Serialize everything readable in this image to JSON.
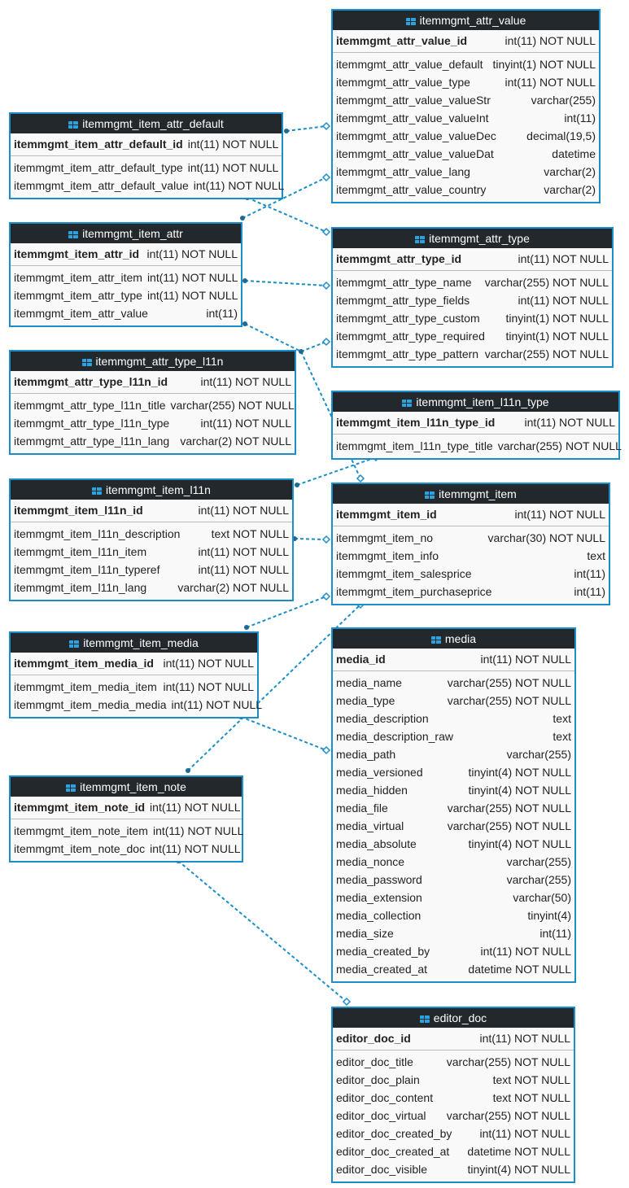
{
  "tables": [
    {
      "name": "itemmgmt_attr_value",
      "primary_key": {
        "name": "itemmgmt_attr_value_id",
        "type": "int(11) NOT NULL"
      },
      "columns": [
        {
          "name": "itemmgmt_attr_value_default",
          "type": "tinyint(1) NOT NULL"
        },
        {
          "name": "itemmgmt_attr_value_type",
          "type": "int(11) NOT NULL"
        },
        {
          "name": "itemmgmt_attr_value_valueStr",
          "type": "varchar(255)"
        },
        {
          "name": "itemmgmt_attr_value_valueInt",
          "type": "int(11)"
        },
        {
          "name": "itemmgmt_attr_value_valueDec",
          "type": "decimal(19,5)"
        },
        {
          "name": "itemmgmt_attr_value_valueDat",
          "type": "datetime"
        },
        {
          "name": "itemmgmt_attr_value_lang",
          "type": "varchar(2)"
        },
        {
          "name": "itemmgmt_attr_value_country",
          "type": "varchar(2)"
        }
      ]
    },
    {
      "name": "itemmgmt_item_attr_default",
      "primary_key": {
        "name": "itemmgmt_item_attr_default_id",
        "type": "int(11) NOT NULL"
      },
      "columns": [
        {
          "name": "itemmgmt_item_attr_default_type",
          "type": "int(11) NOT NULL"
        },
        {
          "name": "itemmgmt_item_attr_default_value",
          "type": "int(11) NOT NULL"
        }
      ]
    },
    {
      "name": "itemmgmt_item_attr",
      "primary_key": {
        "name": "itemmgmt_item_attr_id",
        "type": "int(11) NOT NULL"
      },
      "columns": [
        {
          "name": "itemmgmt_item_attr_item",
          "type": "int(11) NOT NULL"
        },
        {
          "name": "itemmgmt_item_attr_type",
          "type": "int(11) NOT NULL"
        },
        {
          "name": "itemmgmt_item_attr_value",
          "type": "int(11)"
        }
      ]
    },
    {
      "name": "itemmgmt_attr_type",
      "primary_key": {
        "name": "itemmgmt_attr_type_id",
        "type": "int(11) NOT NULL"
      },
      "columns": [
        {
          "name": "itemmgmt_attr_type_name",
          "type": "varchar(255) NOT NULL"
        },
        {
          "name": "itemmgmt_attr_type_fields",
          "type": "int(11) NOT NULL"
        },
        {
          "name": "itemmgmt_attr_type_custom",
          "type": "tinyint(1) NOT NULL"
        },
        {
          "name": "itemmgmt_attr_type_required",
          "type": "tinyint(1) NOT NULL"
        },
        {
          "name": "itemmgmt_attr_type_pattern",
          "type": "varchar(255) NOT NULL"
        }
      ]
    },
    {
      "name": "itemmgmt_attr_type_l11n",
      "primary_key": {
        "name": "itemmgmt_attr_type_l11n_id",
        "type": "int(11) NOT NULL"
      },
      "columns": [
        {
          "name": "itemmgmt_attr_type_l11n_title",
          "type": "varchar(255) NOT NULL"
        },
        {
          "name": "itemmgmt_attr_type_l11n_type",
          "type": "int(11) NOT NULL"
        },
        {
          "name": "itemmgmt_attr_type_l11n_lang",
          "type": "varchar(2) NOT NULL"
        }
      ]
    },
    {
      "name": "itemmgmt_item_l11n_type",
      "primary_key": {
        "name": "itemmgmt_item_l11n_type_id",
        "type": "int(11) NOT NULL"
      },
      "columns": [
        {
          "name": "itemmgmt_item_l11n_type_title",
          "type": "varchar(255) NOT NULL"
        }
      ]
    },
    {
      "name": "itemmgmt_item_l11n",
      "primary_key": {
        "name": "itemmgmt_item_l11n_id",
        "type": "int(11) NOT NULL"
      },
      "columns": [
        {
          "name": "itemmgmt_item_l11n_description",
          "type": "text NOT NULL"
        },
        {
          "name": "itemmgmt_item_l11n_item",
          "type": "int(11) NOT NULL"
        },
        {
          "name": "itemmgmt_item_l11n_typeref",
          "type": "int(11) NOT NULL"
        },
        {
          "name": "itemmgmt_item_l11n_lang",
          "type": "varchar(2) NOT NULL"
        }
      ]
    },
    {
      "name": "itemmgmt_item",
      "primary_key": {
        "name": "itemmgmt_item_id",
        "type": "int(11) NOT NULL"
      },
      "columns": [
        {
          "name": "itemmgmt_item_no",
          "type": "varchar(30) NOT NULL"
        },
        {
          "name": "itemmgmt_item_info",
          "type": "text"
        },
        {
          "name": "itemmgmt_item_salesprice",
          "type": "int(11)"
        },
        {
          "name": "itemmgmt_item_purchaseprice",
          "type": "int(11)"
        }
      ]
    },
    {
      "name": "itemmgmt_item_media",
      "primary_key": {
        "name": "itemmgmt_item_media_id",
        "type": "int(11) NOT NULL"
      },
      "columns": [
        {
          "name": "itemmgmt_item_media_item",
          "type": "int(11) NOT NULL"
        },
        {
          "name": "itemmgmt_item_media_media",
          "type": "int(11) NOT NULL"
        }
      ]
    },
    {
      "name": "media",
      "primary_key": {
        "name": "media_id",
        "type": "int(11) NOT NULL"
      },
      "columns": [
        {
          "name": "media_name",
          "type": "varchar(255) NOT NULL"
        },
        {
          "name": "media_type",
          "type": "varchar(255) NOT NULL"
        },
        {
          "name": "media_description",
          "type": "text"
        },
        {
          "name": "media_description_raw",
          "type": "text"
        },
        {
          "name": "media_path",
          "type": "varchar(255)"
        },
        {
          "name": "media_versioned",
          "type": "tinyint(4) NOT NULL"
        },
        {
          "name": "media_hidden",
          "type": "tinyint(4) NOT NULL"
        },
        {
          "name": "media_file",
          "type": "varchar(255) NOT NULL"
        },
        {
          "name": "media_virtual",
          "type": "varchar(255) NOT NULL"
        },
        {
          "name": "media_absolute",
          "type": "tinyint(4) NOT NULL"
        },
        {
          "name": "media_nonce",
          "type": "varchar(255)"
        },
        {
          "name": "media_password",
          "type": "varchar(255)"
        },
        {
          "name": "media_extension",
          "type": "varchar(50)"
        },
        {
          "name": "media_collection",
          "type": "tinyint(4)"
        },
        {
          "name": "media_size",
          "type": "int(11)"
        },
        {
          "name": "media_created_by",
          "type": "int(11) NOT NULL"
        },
        {
          "name": "media_created_at",
          "type": "datetime NOT NULL"
        }
      ]
    },
    {
      "name": "itemmgmt_item_note",
      "primary_key": {
        "name": "itemmgmt_item_note_id",
        "type": "int(11) NOT NULL"
      },
      "columns": [
        {
          "name": "itemmgmt_item_note_item",
          "type": "int(11) NOT NULL"
        },
        {
          "name": "itemmgmt_item_note_doc",
          "type": "int(11) NOT NULL"
        }
      ]
    },
    {
      "name": "editor_doc",
      "primary_key": {
        "name": "editor_doc_id",
        "type": "int(11) NOT NULL"
      },
      "columns": [
        {
          "name": "editor_doc_title",
          "type": "varchar(255) NOT NULL"
        },
        {
          "name": "editor_doc_plain",
          "type": "text NOT NULL"
        },
        {
          "name": "editor_doc_content",
          "type": "text NOT NULL"
        },
        {
          "name": "editor_doc_virtual",
          "type": "varchar(255) NOT NULL"
        },
        {
          "name": "editor_doc_created_by",
          "type": "int(11) NOT NULL"
        },
        {
          "name": "editor_doc_created_at",
          "type": "datetime NOT NULL"
        },
        {
          "name": "editor_doc_visible",
          "type": "tinyint(4) NOT NULL"
        }
      ]
    }
  ]
}
